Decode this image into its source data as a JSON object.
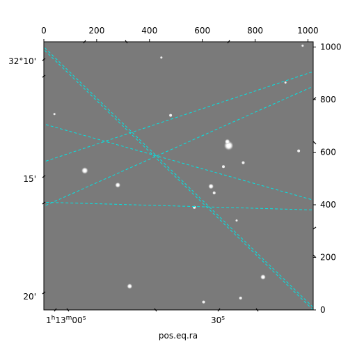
{
  "chart_data": {
    "type": "image",
    "description_of_axes": "Astronomical image with pixel axes and overlaid celestial coordinate grid",
    "pixel_x_ticks": [
      "0",
      "200",
      "400",
      "600",
      "800",
      "1000"
    ],
    "pixel_y_ticks": [
      "0",
      "200",
      "400",
      "600",
      "800",
      "1000"
    ],
    "pixel_xlim": [
      0,
      1020
    ],
    "pixel_ylim": [
      0,
      1020
    ],
    "ra_ticks": [
      {
        "label_base": "1",
        "label_sup1": "h",
        "label_mid": "13",
        "label_sup2": "m",
        "label_tail": "00",
        "label_sup3": "s"
      },
      {
        "label_base": "30",
        "label_sup1": "s"
      }
    ],
    "dec_ticks": [
      "32°10'",
      "15'",
      "20'"
    ],
    "xlabel": "pos.eq.ra",
    "grid_color": "#00e5e5",
    "image_background": "#7a7a7a",
    "stars": [
      {
        "x": 155,
        "y": 530,
        "r": 4
      },
      {
        "x": 280,
        "y": 475,
        "r": 3
      },
      {
        "x": 633,
        "y": 470,
        "r": 3
      },
      {
        "x": 700,
        "y": 625,
        "r": 6
      },
      {
        "x": 695,
        "y": 640,
        "r": 3
      },
      {
        "x": 680,
        "y": 545,
        "r": 2
      },
      {
        "x": 570,
        "y": 390,
        "r": 2
      },
      {
        "x": 645,
        "y": 445,
        "r": 2
      },
      {
        "x": 755,
        "y": 560,
        "r": 2
      },
      {
        "x": 965,
        "y": 605,
        "r": 2
      },
      {
        "x": 480,
        "y": 740,
        "r": 2
      },
      {
        "x": 830,
        "y": 125,
        "r": 3
      },
      {
        "x": 745,
        "y": 45,
        "r": 2
      },
      {
        "x": 325,
        "y": 90,
        "r": 3
      },
      {
        "x": 605,
        "y": 30,
        "r": 2
      },
      {
        "x": 445,
        "y": 960,
        "r": 1.5
      },
      {
        "x": 980,
        "y": 1005,
        "r": 1.5
      },
      {
        "x": 915,
        "y": 865,
        "r": 1.5
      },
      {
        "x": 730,
        "y": 340,
        "r": 1.5
      },
      {
        "x": 40,
        "y": 745,
        "r": 1.5
      }
    ],
    "grid_lines": [
      {
        "family": "ra",
        "p1": [
          -10,
          1000
        ],
        "p2": [
          1030,
          -10
        ]
      },
      {
        "family": "ra",
        "p1": [
          -10,
          710
        ],
        "p2": [
          1030,
          415
        ]
      },
      {
        "family": "ra",
        "p1": [
          -10,
          390
        ],
        "p2": [
          1030,
          855
        ]
      },
      {
        "family": "dec",
        "p1": [
          -10,
          1010
        ],
        "p2": [
          1030,
          0
        ]
      },
      {
        "family": "dec",
        "p1": [
          -10,
          410
        ],
        "p2": [
          1030,
          380
        ]
      },
      {
        "family": "dec",
        "p1": [
          -10,
          560
        ],
        "p2": [
          1030,
          910
        ]
      }
    ]
  }
}
